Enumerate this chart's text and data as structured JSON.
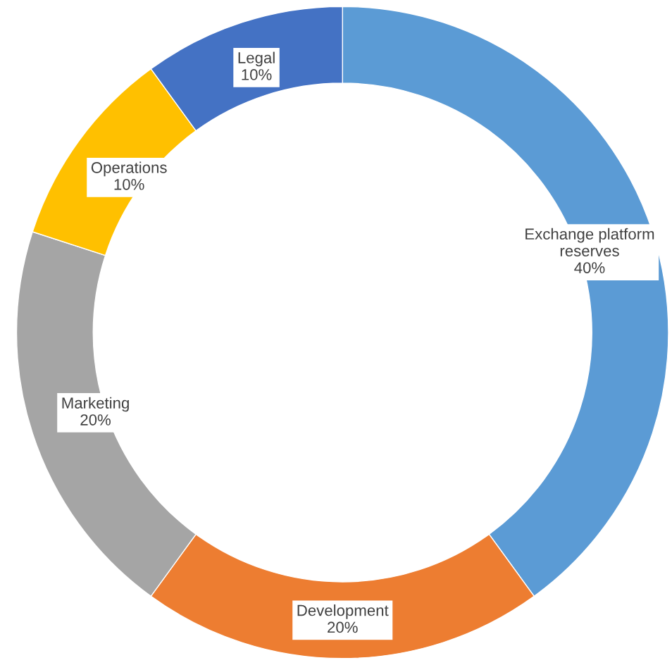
{
  "chart_data": {
    "type": "donut",
    "categories": [
      "Exchange platform\nreserves",
      "Development",
      "Marketing",
      "Operations",
      "Legal"
    ],
    "values": [
      40,
      20,
      20,
      10,
      10
    ],
    "value_labels": [
      "40%",
      "20%",
      "20%",
      "10%",
      "10%"
    ],
    "colors": [
      "#5b9bd5",
      "#ed7d31",
      "#a5a5a5",
      "#ffc000",
      "#4472c4"
    ],
    "legend": false
  }
}
